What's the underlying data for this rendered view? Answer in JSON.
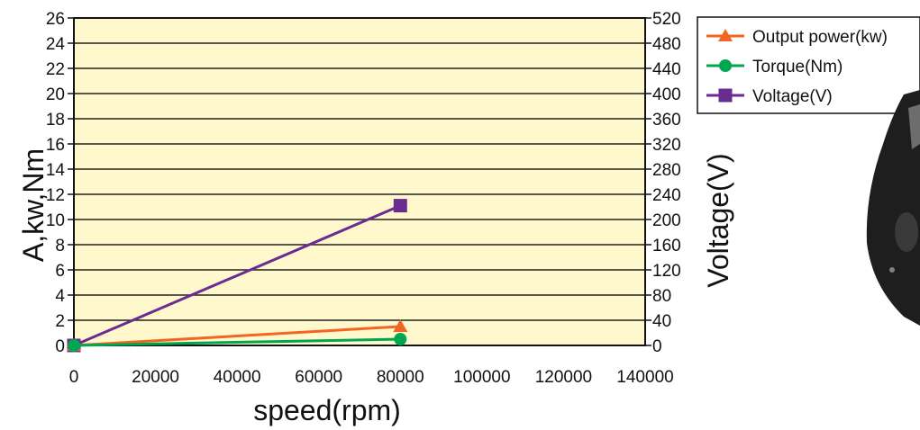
{
  "chart_data": {
    "type": "line",
    "xlabel": "speed(rpm)",
    "ylabel": "A,kw,Nm",
    "y2label": "Voltage(V)",
    "xlim": [
      0,
      140000
    ],
    "ylim": [
      0,
      26
    ],
    "y2lim": [
      0,
      520
    ],
    "x_ticks": [
      "0",
      "20000",
      "40000",
      "60000",
      "80000",
      "100000",
      "120000",
      "140000"
    ],
    "y_ticks": [
      "0",
      "2",
      "4",
      "6",
      "8",
      "10",
      "12",
      "14",
      "16",
      "18",
      "20",
      "22",
      "24",
      "26"
    ],
    "y2_ticks": [
      "0",
      "40",
      "80",
      "120",
      "160",
      "200",
      "240",
      "280",
      "320",
      "360",
      "400",
      "440",
      "480",
      "520"
    ],
    "grid": true,
    "legend_position": "top-right",
    "series": [
      {
        "name": "Output power(kw)",
        "axis": "left",
        "marker": "triangle",
        "color": "#f26522",
        "x": [
          0,
          80000
        ],
        "y": [
          0,
          1.5
        ]
      },
      {
        "name": "Torque(Nm)",
        "axis": "left",
        "marker": "circle",
        "color": "#00a650",
        "x": [
          0,
          80000
        ],
        "y": [
          0,
          0.5
        ]
      },
      {
        "name": "Voltage(V)",
        "axis": "right",
        "marker": "square",
        "color": "#6a2c91",
        "x": [
          0,
          80000
        ],
        "y": [
          0,
          222
        ]
      }
    ]
  },
  "colors": {
    "plot_background": "#fff8cc",
    "gridline": "#222222"
  }
}
